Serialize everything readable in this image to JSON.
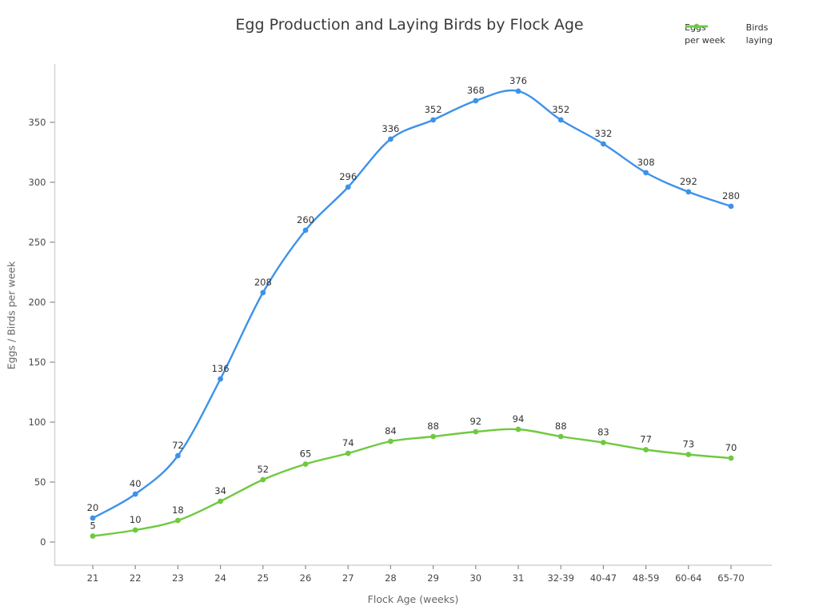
{
  "title": "Egg Production and Laying Birds by Flock Age",
  "axes": {
    "xlabel": "Flock Age (weeks)",
    "ylabel": "Eggs / Birds per week"
  },
  "chart_data": {
    "type": "line",
    "title": "Egg Production and Laying Birds by Flock Age",
    "xlabel": "Flock Age (weeks)",
    "ylabel": "Eggs / Birds per week",
    "categories": [
      "21",
      "22",
      "23",
      "24",
      "25",
      "26",
      "27",
      "28",
      "29",
      "30",
      "31",
      "32-39",
      "40-47",
      "48-59",
      "60-64",
      "65-70"
    ],
    "series": [
      {
        "name": "Eggs per week",
        "legend_lines": [
          "Eggs",
          "per week"
        ],
        "color": "#3d92ea",
        "values": [
          20,
          40,
          72,
          136,
          208,
          260,
          296,
          336,
          352,
          368,
          376,
          352,
          332,
          308,
          292,
          280
        ]
      },
      {
        "name": "Birds laying",
        "legend_lines": [
          "Birds",
          "laying"
        ],
        "color": "#6fc93f",
        "values": [
          5,
          10,
          18,
          34,
          52,
          65,
          74,
          84,
          88,
          92,
          94,
          88,
          83,
          77,
          73,
          70
        ]
      }
    ],
    "yticks": [
      0,
      50,
      100,
      150,
      200,
      250,
      300,
      350
    ],
    "ylim": [
      -20,
      399
    ],
    "grid": false,
    "legend_position": "top-right",
    "point_labels": true,
    "marker": "circle"
  },
  "colors": {
    "background": "#ffffff",
    "axis_line": "#d2d2d2",
    "tick_mark": "#8a8a8a",
    "tick_label": "#474747",
    "value_label": "#333333",
    "title": "#3a3a3a",
    "axis_title": "#666666"
  }
}
